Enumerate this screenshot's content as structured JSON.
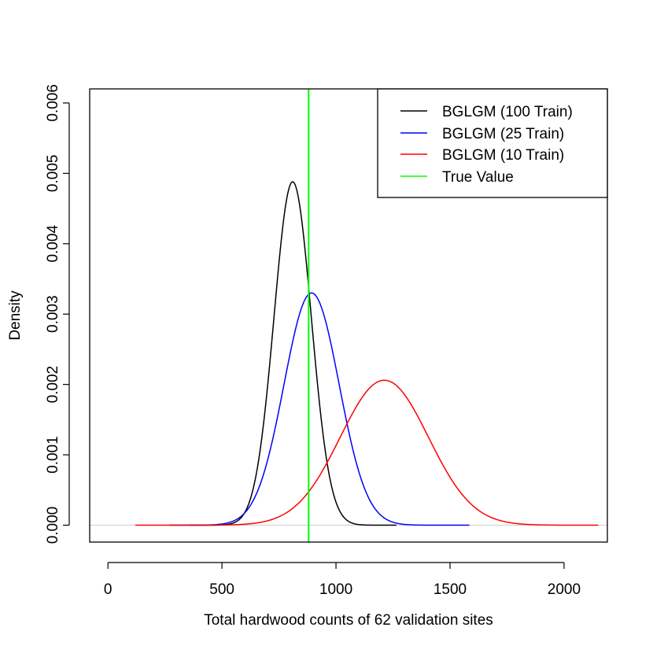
{
  "chart_data": {
    "type": "line",
    "xlabel": "Total hardwood counts of 62 validation sites",
    "ylabel": "Density",
    "xlim": [
      -80,
      2190
    ],
    "ylim": [
      -0.00024,
      0.0062
    ],
    "x_ticks": [
      0,
      500,
      1000,
      1500,
      2000
    ],
    "x_tick_labels": [
      "0",
      "500",
      "1000",
      "1500",
      "2000"
    ],
    "y_ticks": [
      0,
      0.001,
      0.002,
      0.003,
      0.004,
      0.005,
      0.006
    ],
    "y_tick_labels": [
      "0.000",
      "0.001",
      "0.002",
      "0.003",
      "0.004",
      "0.005",
      "0.006"
    ],
    "legend_position": "top-right",
    "series": [
      {
        "name": "BGLGM (100 Train)",
        "color": "#000000",
        "mean": 810,
        "peak": 0.00488,
        "x_range": [
          360,
          1265
        ]
      },
      {
        "name": "BGLGM (25 Train)",
        "color": "#0000ff",
        "mean": 893,
        "peak": 0.0033,
        "x_range": [
          270,
          1585
        ]
      },
      {
        "name": "BGLGM (10 Train)",
        "color": "#ff0000",
        "mean": 1212,
        "peak": 0.00206,
        "x_range": [
          120,
          2150
        ]
      }
    ],
    "reference_line": {
      "name": "True Value",
      "color": "#00ff00",
      "x": 880
    },
    "baseline": {
      "y": 0,
      "color": "#cccccc"
    }
  }
}
